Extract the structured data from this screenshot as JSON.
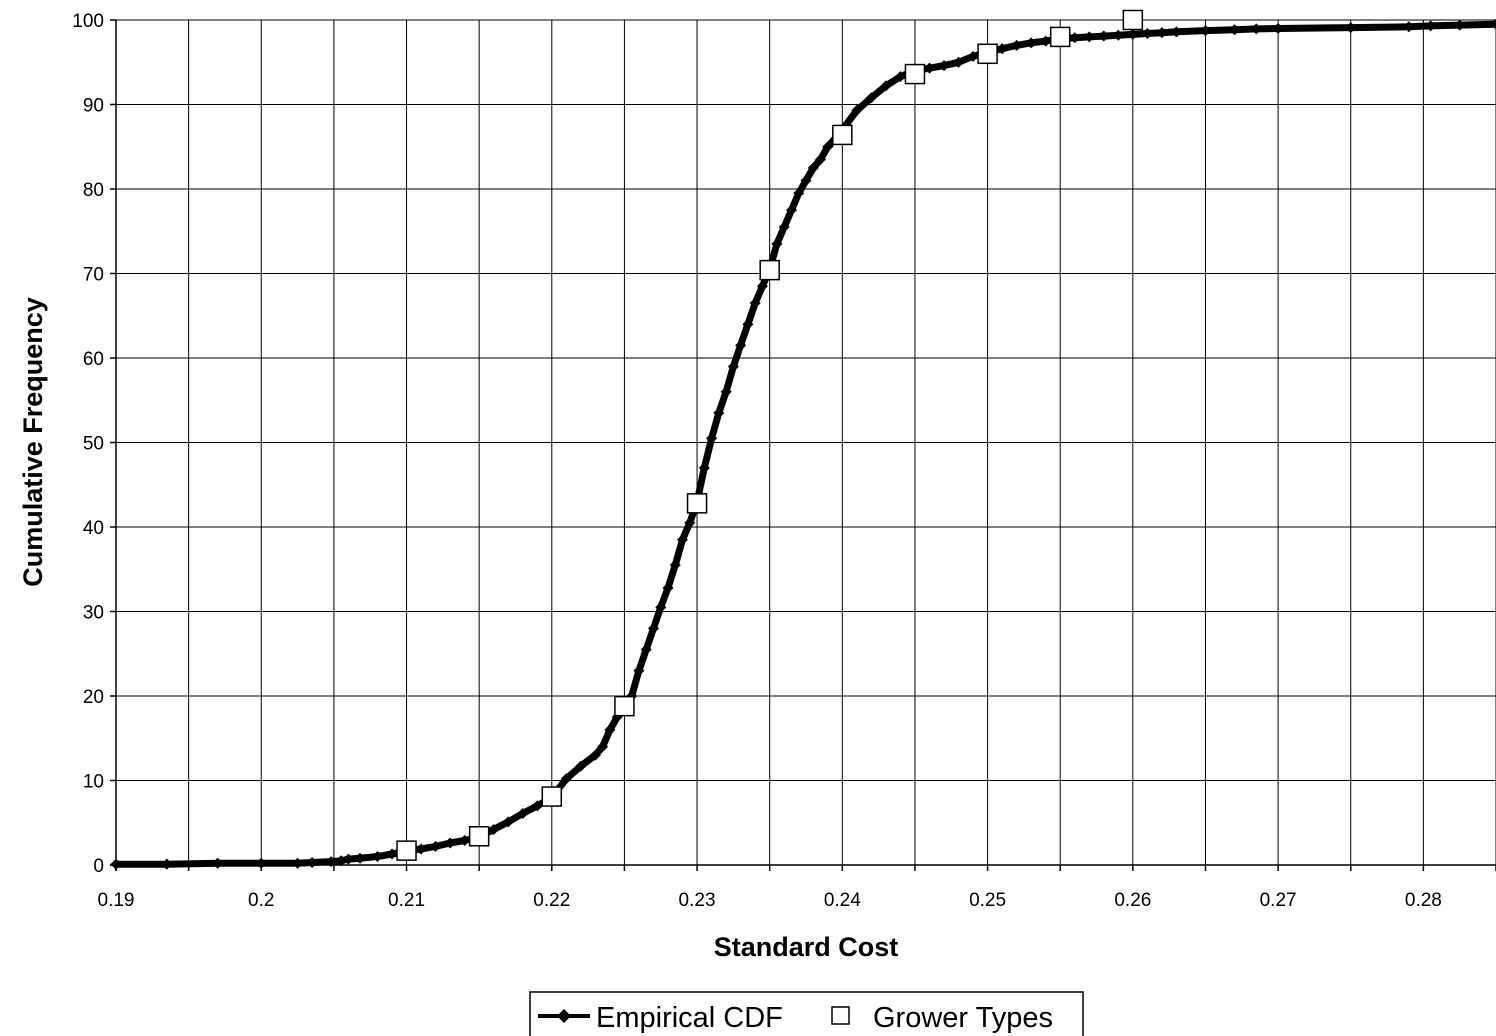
{
  "chart_data": {
    "type": "line",
    "title": "",
    "xlabel": "Standard Cost",
    "ylabel": "Cumulative Frequency",
    "xlim": [
      0.19,
      0.285
    ],
    "ylim": [
      0,
      100
    ],
    "x_ticks": [
      0.19,
      0.2,
      0.21,
      0.22,
      0.23,
      0.24,
      0.25,
      0.26,
      0.27,
      0.28
    ],
    "x_tick_labels": [
      "0.19",
      "0.2",
      "0.21",
      "0.22",
      "0.23",
      "0.24",
      "0.25",
      "0.26",
      "0.27",
      "0.28"
    ],
    "y_ticks": [
      0,
      10,
      20,
      30,
      40,
      50,
      60,
      70,
      80,
      90,
      100
    ],
    "y_tick_labels": [
      "0",
      "10",
      "20",
      "30",
      "40",
      "50",
      "60",
      "70",
      "80",
      "90",
      "100"
    ],
    "grid": true,
    "legend_position": "bottom-center",
    "series": [
      {
        "name": "Empirical CDF",
        "style": "line-with-diamond-markers",
        "color": "#000000",
        "x": [
          0.19,
          0.1935,
          0.197,
          0.2,
          0.2025,
          0.2035,
          0.2048,
          0.2055,
          0.206,
          0.2068,
          0.208,
          0.209,
          0.21,
          0.211,
          0.212,
          0.213,
          0.214,
          0.215,
          0.216,
          0.217,
          0.218,
          0.219,
          0.22,
          0.221,
          0.222,
          0.223,
          0.2235,
          0.224,
          0.2245,
          0.225,
          0.2255,
          0.226,
          0.2265,
          0.227,
          0.2275,
          0.228,
          0.2285,
          0.229,
          0.2295,
          0.23,
          0.2305,
          0.231,
          0.2315,
          0.232,
          0.2325,
          0.233,
          0.2335,
          0.234,
          0.2345,
          0.235,
          0.2355,
          0.236,
          0.2365,
          0.237,
          0.2375,
          0.238,
          0.2385,
          0.239,
          0.24,
          0.241,
          0.242,
          0.243,
          0.244,
          0.245,
          0.246,
          0.247,
          0.248,
          0.249,
          0.25,
          0.251,
          0.252,
          0.253,
          0.254,
          0.255,
          0.256,
          0.257,
          0.258,
          0.259,
          0.26,
          0.261,
          0.262,
          0.263,
          0.265,
          0.267,
          0.2685,
          0.27,
          0.275,
          0.279,
          0.2805,
          0.2825,
          0.285
        ],
        "y": [
          0.1,
          0.1,
          0.2,
          0.2,
          0.2,
          0.3,
          0.4,
          0.5,
          0.7,
          0.8,
          1.0,
          1.3,
          1.6,
          1.9,
          2.2,
          2.6,
          2.9,
          3.3,
          4.2,
          5.1,
          6.1,
          7.0,
          8.0,
          10.2,
          11.7,
          13.0,
          14.0,
          16.0,
          17.5,
          18.6,
          20.0,
          23.0,
          25.5,
          28.0,
          30.5,
          32.8,
          35.5,
          38.5,
          40.5,
          43.0,
          47.0,
          50.5,
          53.5,
          56.0,
          59.0,
          61.5,
          64.0,
          66.5,
          68.5,
          70.5,
          73.5,
          75.5,
          77.5,
          79.5,
          81.0,
          82.5,
          83.5,
          85.0,
          87.0,
          89.3,
          90.8,
          92.2,
          93.3,
          94.0,
          94.3,
          94.6,
          95.0,
          95.7,
          96.2,
          96.6,
          97.0,
          97.3,
          97.5,
          97.8,
          97.9,
          98.0,
          98.1,
          98.2,
          98.3,
          98.4,
          98.5,
          98.6,
          98.75,
          98.85,
          98.95,
          99.0,
          99.1,
          99.2,
          99.3,
          99.4,
          99.5
        ]
      },
      {
        "name": "Grower Types",
        "style": "open-square-markers",
        "color": "#000000",
        "x": [
          0.21,
          0.215,
          0.22,
          0.225,
          0.23,
          0.235,
          0.24,
          0.245,
          0.25,
          0.255,
          0.26
        ],
        "y": [
          1.7,
          3.4,
          8.1,
          18.8,
          42.8,
          70.4,
          86.4,
          93.6,
          96.0,
          98.0,
          100.0
        ]
      }
    ]
  }
}
